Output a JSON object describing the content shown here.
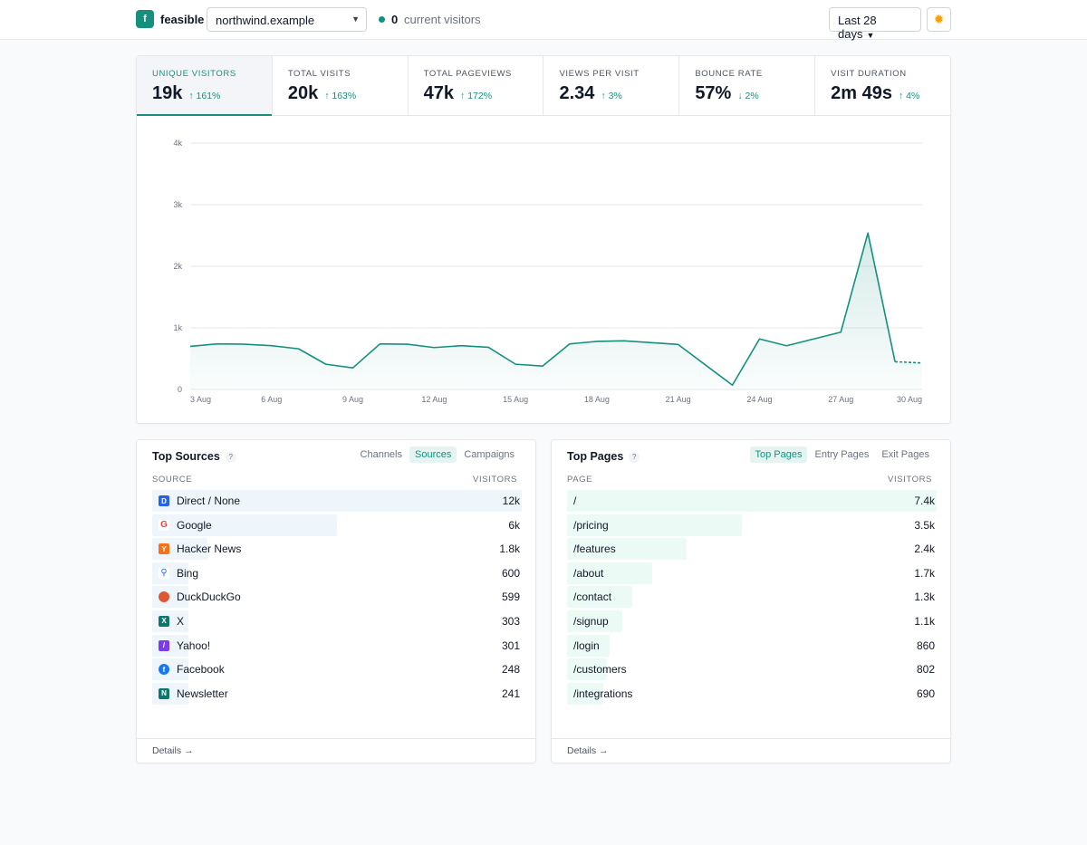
{
  "header": {
    "logo_letter": "f",
    "brand": "feasible",
    "site": "northwind.example",
    "live_count": "0",
    "live_label": "current visitors",
    "date_range": "Last 28 days",
    "theme_icon": "sun-icon"
  },
  "metrics": [
    {
      "label": "Unique Visitors",
      "value": "19k",
      "change": "↑ 161%"
    },
    {
      "label": "Total Visits",
      "value": "20k",
      "change": "↑ 163%"
    },
    {
      "label": "Total Pageviews",
      "value": "47k",
      "change": "↑ 172%"
    },
    {
      "label": "Views per Visit",
      "value": "2.34",
      "change": "↑ 3%"
    },
    {
      "label": "Bounce Rate",
      "value": "57%",
      "change": "↓ 2%"
    },
    {
      "label": "Visit Duration",
      "value": "2m 49s",
      "change": "↑ 4%"
    }
  ],
  "chart_data": {
    "type": "area",
    "ylim": [
      0,
      4000
    ],
    "y_ticks": [
      "0",
      "1k",
      "2k",
      "3k",
      "4k"
    ],
    "x_tick_labels": [
      "3 Aug",
      "6 Aug",
      "9 Aug",
      "12 Aug",
      "15 Aug",
      "18 Aug",
      "21 Aug",
      "24 Aug",
      "27 Aug",
      "30 Aug"
    ],
    "x": [
      "3 Aug",
      "4 Aug",
      "5 Aug",
      "6 Aug",
      "7 Aug",
      "8 Aug",
      "9 Aug",
      "10 Aug",
      "11 Aug",
      "12 Aug",
      "13 Aug",
      "14 Aug",
      "15 Aug",
      "16 Aug",
      "17 Aug",
      "18 Aug",
      "19 Aug",
      "20 Aug",
      "21 Aug",
      "22 Aug",
      "23 Aug",
      "24 Aug",
      "25 Aug",
      "26 Aug",
      "27 Aug",
      "28 Aug",
      "29 Aug",
      "30 Aug"
    ],
    "series": [
      {
        "values": [
          700,
          740,
          735,
          710,
          660,
          410,
          350,
          740,
          735,
          680,
          710,
          685,
          410,
          380,
          740,
          780,
          790,
          760,
          730,
          400,
          70,
          820,
          710,
          820,
          930,
          2540,
          450,
          430
        ],
        "incomplete_from_index": 26
      }
    ],
    "color": "#15907f"
  },
  "sources": {
    "title": "Top Sources",
    "help": "?",
    "tabs": [
      "Channels",
      "Sources",
      "Campaigns"
    ],
    "active_tab": "Sources",
    "col_left": "SOURCE",
    "col_right": "VISITORS",
    "max": 12000,
    "rows": [
      {
        "icon": "direct-icon",
        "icon_text": "D",
        "color": "#2563eb",
        "label": "Direct / None",
        "value": "12k",
        "n": 12000
      },
      {
        "icon": "google-icon",
        "icon_text": "G",
        "color": "#ffffff",
        "label": "Google",
        "value": "6k",
        "n": 6000
      },
      {
        "icon": "hacker-news-icon",
        "icon_text": "Y",
        "color": "#f97316",
        "label": "Hacker News",
        "value": "1.8k",
        "n": 1800
      },
      {
        "icon": "bing-icon",
        "icon_text": "⚲",
        "color": "#ffffff",
        "label": "Bing",
        "value": "600",
        "n": 600
      },
      {
        "icon": "duckduckgo-icon",
        "icon_text": "",
        "color": "#de5833",
        "label": "DuckDuckGo",
        "value": "599",
        "n": 599
      },
      {
        "icon": "x-icon",
        "icon_text": "X",
        "color": "#0f766e",
        "label": "X",
        "value": "303",
        "n": 303
      },
      {
        "icon": "yahoo-icon",
        "icon_text": "/",
        "color": "#7c3aed",
        "label": "Yahoo!",
        "value": "301",
        "n": 301
      },
      {
        "icon": "facebook-icon",
        "icon_text": "f",
        "color": "#1877f2",
        "label": "Facebook",
        "value": "248",
        "n": 248
      },
      {
        "icon": "newsletter-icon",
        "icon_text": "N",
        "color": "#0f766e",
        "label": "Newsletter",
        "value": "241",
        "n": 241
      }
    ],
    "details": "Details →"
  },
  "pages": {
    "title": "Top Pages",
    "help": "?",
    "tabs": [
      "Top Pages",
      "Entry Pages",
      "Exit Pages"
    ],
    "active_tab": "Top Pages",
    "col_left": "PAGE",
    "col_right": "VISITORS",
    "max": 7400,
    "rows": [
      {
        "label": "/",
        "value": "7.4k",
        "n": 7400
      },
      {
        "label": "/pricing",
        "value": "3.5k",
        "n": 3500
      },
      {
        "label": "/features",
        "value": "2.4k",
        "n": 2400
      },
      {
        "label": "/about",
        "value": "1.7k",
        "n": 1700
      },
      {
        "label": "/contact",
        "value": "1.3k",
        "n": 1300
      },
      {
        "label": "/signup",
        "value": "1.1k",
        "n": 1100
      },
      {
        "label": "/login",
        "value": "860",
        "n": 860
      },
      {
        "label": "/customers",
        "value": "802",
        "n": 802
      },
      {
        "label": "/integrations",
        "value": "690",
        "n": 690
      }
    ],
    "details": "Details →"
  }
}
